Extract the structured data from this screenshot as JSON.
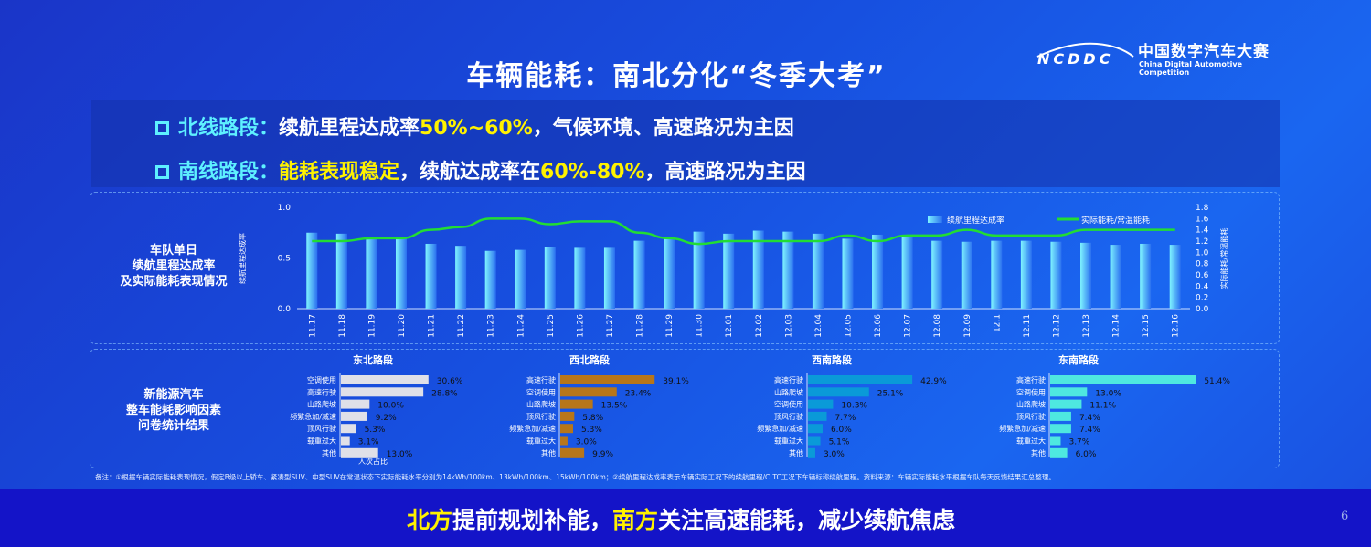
{
  "header": {
    "title": "车辆能耗：南北分化“冬季大考”",
    "logo_cn": "中国数字汽车大赛",
    "logo_en": "China Digital Automotive Competition",
    "logo_mark": "NCDDC"
  },
  "summary": {
    "north": {
      "label": "北线路段：",
      "text1": "续航里程达成率",
      "highlight": "50%~60%",
      "text2": "，气候环境、高速路况为主因"
    },
    "south": {
      "label": "南线路段：",
      "highlight1": "能耗表现稳定",
      "text1": "，续航达成率在",
      "highlight2": "60%-80%",
      "text2": "，高速路况为主因"
    }
  },
  "chart_panel_label": [
    "车队单日",
    "续航里程达成率",
    "及实际能耗表现情况"
  ],
  "chart_data": [
    {
      "type": "bar+line",
      "categories": [
        "11.17",
        "11.18",
        "11.19",
        "11.20",
        "11.21",
        "11.22",
        "11.23",
        "11.24",
        "11.25",
        "11.26",
        "11.27",
        "11.28",
        "11.29",
        "11.30",
        "12.01",
        "12.02",
        "12.03",
        "12.04",
        "12.05",
        "12.06",
        "12.07",
        "12.08",
        "12.09",
        "12.1",
        "12.11",
        "12.12",
        "12.13",
        "12.14",
        "12.15",
        "12.16"
      ],
      "series": [
        {
          "name": "续航里程达成率",
          "type": "bar",
          "axis": "left",
          "color": "#5ee6ff",
          "values": [
            0.75,
            0.74,
            0.7,
            0.69,
            0.64,
            0.62,
            0.57,
            0.58,
            0.61,
            0.6,
            0.6,
            0.67,
            0.7,
            0.76,
            0.74,
            0.77,
            0.76,
            0.74,
            0.69,
            0.73,
            0.71,
            0.67,
            0.66,
            0.67,
            0.67,
            0.66,
            0.65,
            0.63,
            0.64,
            0.63
          ]
        },
        {
          "name": "实际能耗/常温能耗",
          "type": "line",
          "axis": "right",
          "color": "#22dd33",
          "values": [
            1.2,
            1.2,
            1.25,
            1.25,
            1.4,
            1.45,
            1.6,
            1.6,
            1.5,
            1.55,
            1.55,
            1.35,
            1.25,
            1.15,
            1.2,
            1.2,
            1.2,
            1.2,
            1.3,
            1.2,
            1.3,
            1.3,
            1.4,
            1.3,
            1.3,
            1.3,
            1.4,
            1.4,
            1.4,
            1.4
          ]
        }
      ],
      "ylabel": "续航里程达成率",
      "y2label": "实际能耗/常温能耗",
      "ylim": [
        0,
        1.0
      ],
      "yticks": [
        "0.0",
        "0.5",
        "1.0"
      ],
      "y2lim": [
        0,
        1.8
      ],
      "y2ticks": [
        "0.0",
        "0.2",
        "0.4",
        "0.6",
        "0.8",
        "1.0",
        "1.2",
        "1.4",
        "1.6",
        "1.8"
      ],
      "legend": "top-right",
      "grid": false
    },
    {
      "type": "bar",
      "orientation": "horizontal",
      "title": "东北路段",
      "color": "#e0e0e8",
      "xlabel": "人次占比",
      "categories": [
        "空调使用",
        "高速行驶",
        "山路爬坡",
        "频繁急加/减速",
        "顶风行驶",
        "载重过大",
        "其他"
      ],
      "values": [
        30.6,
        28.8,
        10.0,
        9.2,
        5.3,
        3.1,
        13.0
      ],
      "labels": [
        "30.6%",
        "28.8%",
        "10.0%",
        "9.2%",
        "5.3%",
        "3.1%",
        "13.0%"
      ]
    },
    {
      "type": "bar",
      "orientation": "horizontal",
      "title": "西北路段",
      "color": "#b8761a",
      "categories": [
        "高速行驶",
        "空调使用",
        "山路爬坡",
        "顶风行驶",
        "频繁急加/减速",
        "载重过大",
        "其他"
      ],
      "values": [
        39.1,
        23.4,
        13.5,
        5.8,
        5.3,
        3.0,
        9.9
      ],
      "labels": [
        "39.1%",
        "23.4%",
        "13.5%",
        "5.8%",
        "5.3%",
        "3.0%",
        "9.9%"
      ]
    },
    {
      "type": "bar",
      "orientation": "horizontal",
      "title": "西南路段",
      "color": "#0a9ad8",
      "categories": [
        "高速行驶",
        "山路爬坡",
        "空调使用",
        "顶风行驶",
        "频繁急加/减速",
        "载重过大",
        "其他"
      ],
      "values": [
        42.9,
        25.1,
        10.3,
        7.7,
        6.0,
        5.1,
        3.0
      ],
      "labels": [
        "42.9%",
        "25.1%",
        "10.3%",
        "7.7%",
        "6.0%",
        "5.1%",
        "3.0%"
      ]
    },
    {
      "type": "bar",
      "orientation": "horizontal",
      "title": "东南路段",
      "color": "#4ee8e0",
      "categories": [
        "高速行驶",
        "空调使用",
        "山路爬坡",
        "顶风行驶",
        "频繁急加/减速",
        "载重过大",
        "其他"
      ],
      "values": [
        51.4,
        13.0,
        11.1,
        7.4,
        7.4,
        3.7,
        6.0
      ],
      "labels": [
        "51.4%",
        "13.0%",
        "11.1%",
        "7.4%",
        "7.4%",
        "3.7%",
        "6.0%"
      ]
    }
  ],
  "survey_panel_label": [
    "新能源汽车",
    "整车能耗影响因素",
    "问卷统计结果"
  ],
  "footnote": "备注：①根据车辆实际能耗表现情况，假定B级以上轿车、紧凑型SUV、中型SUV在常温状态下实际能耗水平分别为14kWh/100km、13kWh/100km、15kWh/100km；②续航里程达成率表示车辆实际工况下的续航里程/CLTC工况下车辆标称续航里程。资料来源：车辆实际能耗水平根据车队每天反馈结果汇总整理。",
  "banner": {
    "h1": "北方",
    "t1": "提前规划补能，",
    "h2": "南方",
    "t2": "关注高速能耗，减少续航焦虑"
  },
  "page_number": "6"
}
